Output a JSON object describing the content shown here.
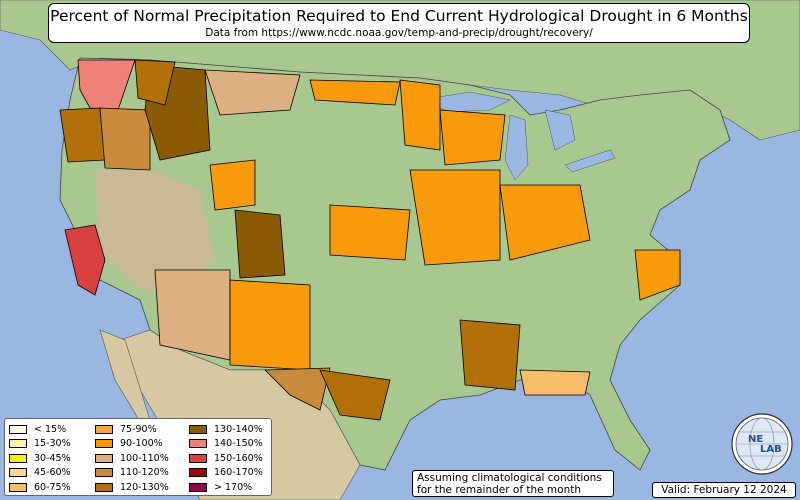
{
  "title": "Percent of Normal Precipitation Required to End Current Hydrological Drought in 6 Months",
  "subtitle": "Data from https://www.ncdc.noaa.gov/temp-and-precip/drought/recovery/",
  "legend": {
    "columns": [
      [
        {
          "label": "< 15%",
          "color": "#fffbe6"
        },
        {
          "label": "15-30%",
          "color": "#fdf0a8"
        },
        {
          "label": "30-45%",
          "color": "#f8f100"
        },
        {
          "label": "45-60%",
          "color": "#f9d889"
        },
        {
          "label": "60-75%",
          "color": "#f6be6b"
        }
      ],
      [
        {
          "label": "75-90%",
          "color": "#f5a93a"
        },
        {
          "label": "90-100%",
          "color": "#f99a0c"
        },
        {
          "label": "100-110%",
          "color": "#dcb083"
        },
        {
          "label": "110-120%",
          "color": "#c98a3e"
        },
        {
          "label": "120-130%",
          "color": "#b2700a"
        }
      ],
      [
        {
          "label": "130-140%",
          "color": "#8a5a05"
        },
        {
          "label": "140-150%",
          "color": "#ef8177"
        },
        {
          "label": "150-160%",
          "color": "#d8413f"
        },
        {
          "label": "160-170%",
          "color": "#9c0404"
        },
        {
          "label": "> 170%",
          "color": "#950150"
        }
      ]
    ]
  },
  "note": {
    "line1": "Assuming climatological conditions",
    "line2": "for the remainder of the month"
  },
  "valid_label": "Valid: February 12 2024",
  "logo": {
    "text1": "NE",
    "text2": "LAB",
    "icon": "nexlab-globe-logo"
  },
  "colors": {
    "ocean": "#99b7e0",
    "land_green": "#a9c890",
    "land_tan": "#d6c8a0",
    "land_mountain": "#c9b994"
  },
  "regions": [
    {
      "name": "washington-coast",
      "color": "#ef8177"
    },
    {
      "name": "oregon-west",
      "color": "#b2700a"
    },
    {
      "name": "oregon-central",
      "color": "#c98a3e"
    },
    {
      "name": "idaho",
      "color": "#8a5a05"
    },
    {
      "name": "montana-west",
      "color": "#b2700a"
    },
    {
      "name": "montana-east",
      "color": "#dcb083"
    },
    {
      "name": "wyoming-west",
      "color": "#f99a0c"
    },
    {
      "name": "california-central",
      "color": "#d8413f"
    },
    {
      "name": "utah-east",
      "color": "#8a5a05"
    },
    {
      "name": "arizona",
      "color": "#dcb083"
    },
    {
      "name": "new-mexico",
      "color": "#f99a0c"
    },
    {
      "name": "texas-west",
      "color": "#c98a3e"
    },
    {
      "name": "texas-central",
      "color": "#b2700a"
    },
    {
      "name": "north-dakota",
      "color": "#f99a0c"
    },
    {
      "name": "minnesota",
      "color": "#f99a0c"
    },
    {
      "name": "wisconsin",
      "color": "#f99a0c"
    },
    {
      "name": "iowa-missouri",
      "color": "#f99a0c"
    },
    {
      "name": "nebraska-kansas",
      "color": "#f99a0c"
    },
    {
      "name": "ohio-valley",
      "color": "#f99a0c"
    },
    {
      "name": "lower-mississippi",
      "color": "#b2700a"
    },
    {
      "name": "gulf-coast",
      "color": "#f6be6b"
    },
    {
      "name": "north-carolina",
      "color": "#f99a0c"
    }
  ]
}
